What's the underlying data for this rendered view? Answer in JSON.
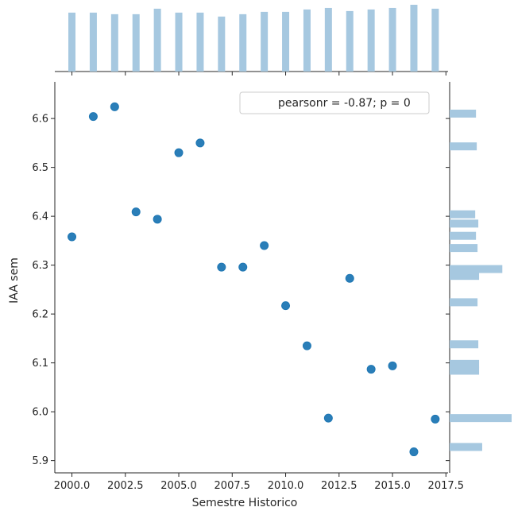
{
  "chart_data": {
    "type": "scatter",
    "title": "",
    "xlabel": "Semestre Historico",
    "ylabel": "IAA sem",
    "xlim": [
      1999.2,
      2017.6
    ],
    "ylim": [
      5.875,
      6.675
    ],
    "xticks": [
      2000.0,
      2002.5,
      2005.0,
      2007.5,
      2010.0,
      2012.5,
      2015.0,
      2017.5
    ],
    "xtick_labels": [
      "2000.0",
      "2002.5",
      "2005.0",
      "2007.5",
      "2010.0",
      "2012.5",
      "2015.0",
      "2017.5"
    ],
    "yticks": [
      5.9,
      6.0,
      6.1,
      6.2,
      6.3,
      6.4,
      6.5,
      6.6
    ],
    "ytick_labels": [
      "5.9",
      "6.0",
      "6.1",
      "6.2",
      "6.3",
      "6.4",
      "6.5",
      "6.6"
    ],
    "grid": false,
    "legend": {
      "position": "top-right",
      "text": "pearsonr = -0.87; p = 0"
    },
    "points": [
      {
        "x": 2000,
        "y": 6.358
      },
      {
        "x": 2001,
        "y": 6.604
      },
      {
        "x": 2002,
        "y": 6.624
      },
      {
        "x": 2003,
        "y": 6.409
      },
      {
        "x": 2004,
        "y": 6.394
      },
      {
        "x": 2005,
        "y": 6.53
      },
      {
        "x": 2006,
        "y": 6.55
      },
      {
        "x": 2007,
        "y": 6.296
      },
      {
        "x": 2008,
        "y": 6.296
      },
      {
        "x": 2009,
        "y": 6.34
      },
      {
        "x": 2010,
        "y": 6.217
      },
      {
        "x": 2011,
        "y": 6.135
      },
      {
        "x": 2012,
        "y": 5.987
      },
      {
        "x": 2013,
        "y": 6.273
      },
      {
        "x": 2014,
        "y": 6.087
      },
      {
        "x": 2015,
        "y": 6.094
      },
      {
        "x": 2016,
        "y": 5.918
      },
      {
        "x": 2017,
        "y": 5.985
      }
    ],
    "marginal_x_hist": {
      "x": [
        2000,
        2001,
        2002,
        2003,
        2004,
        2005,
        2006,
        2007,
        2008,
        2009,
        2010,
        2011,
        2012,
        2013,
        2014,
        2015,
        2016,
        2017
      ],
      "counts": [
        75,
        75,
        73,
        73,
        80,
        75,
        75,
        70,
        73,
        76,
        76,
        79,
        81,
        77,
        79,
        81,
        85,
        80
      ]
    },
    "marginal_y_hist": {
      "y": [
        5.928,
        5.987,
        6.084,
        6.098,
        6.138,
        6.224,
        6.278,
        6.292,
        6.335,
        6.36,
        6.385,
        6.404,
        6.543,
        6.61
      ],
      "counts": [
        42,
        80,
        38,
        38,
        37,
        36,
        38,
        68,
        36,
        34,
        37,
        33,
        35,
        34
      ]
    },
    "colors": {
      "points": "#1f77b4",
      "hist": "#a6c8e0",
      "axis": "#262626"
    }
  }
}
